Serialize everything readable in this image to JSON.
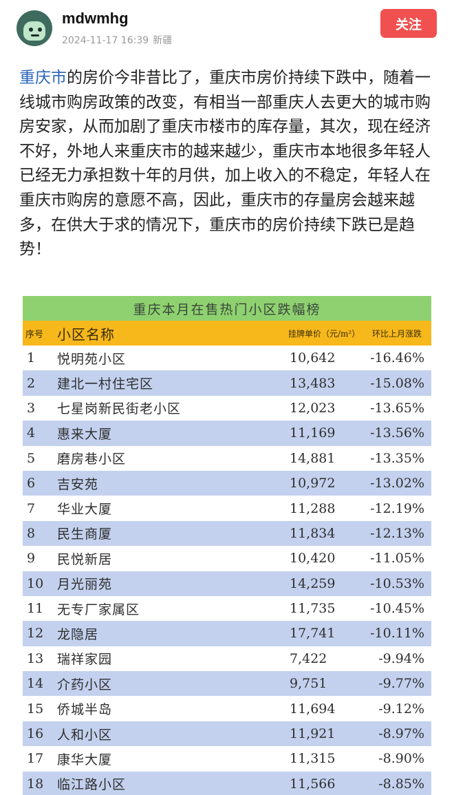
{
  "author": {
    "name": "mdwmhg",
    "timestamp": "2024-11-17 16:39",
    "location": "新疆",
    "follow_label": "关注"
  },
  "post": {
    "link_text": "重庆市",
    "body": "的房价今非昔比了，重庆市房价持续下跌中，随着一线城市购房政策的改变，有相当一部重庆人去更大的城市购房安家，从而加剧了重庆市楼市的库存量，其次，现在经济不好，外地人来重庆市的越来越少，重庆市本地很多年轻人已经无力承担数十年的月供，加上收入的不稳定，年轻人在重庆市购房的意愿不高，因此，重庆市的存量房会越来越多，在供大于求的情况下，重庆市的房价持续下跌已是趋势！"
  },
  "table": {
    "title": "重庆本月在售热门小区跌幅榜",
    "headers": {
      "no": "序号",
      "name": "小区名称",
      "price": "挂牌单价（元/m²）",
      "change": "环比上月涨跌"
    },
    "rows": [
      {
        "no": "1",
        "name": "悦明苑小区",
        "price": "10,642",
        "change": "-16.46%"
      },
      {
        "no": "2",
        "name": "建北一村住宅区",
        "price": "13,483",
        "change": "-15.08%"
      },
      {
        "no": "3",
        "name": "七星岗新民街老小区",
        "price": "12,023",
        "change": "-13.65%"
      },
      {
        "no": "4",
        "name": "惠来大厦",
        "price": "11,169",
        "change": "-13.56%"
      },
      {
        "no": "5",
        "name": "磨房巷小区",
        "price": "14,881",
        "change": "-13.35%"
      },
      {
        "no": "6",
        "name": "吉安苑",
        "price": "10,972",
        "change": "-13.02%"
      },
      {
        "no": "7",
        "name": "华业大厦",
        "price": "11,288",
        "change": "-12.19%"
      },
      {
        "no": "8",
        "name": "民生商厦",
        "price": "11,834",
        "change": "-12.13%"
      },
      {
        "no": "9",
        "name": "民悦新居",
        "price": "10,420",
        "change": "-11.05%"
      },
      {
        "no": "10",
        "name": "月光丽苑",
        "price": "14,259",
        "change": "-10.53%"
      },
      {
        "no": "11",
        "name": "无专厂家属区",
        "price": "11,735",
        "change": "-10.45%"
      },
      {
        "no": "12",
        "name": "龙隐居",
        "price": "17,741",
        "change": "-10.11%"
      },
      {
        "no": "13",
        "name": "瑞祥家园",
        "price": "7,422",
        "change": "-9.94%"
      },
      {
        "no": "14",
        "name": "介药小区",
        "price": "9,751",
        "change": "-9.77%"
      },
      {
        "no": "15",
        "name": "侨城半岛",
        "price": "11,694",
        "change": "-9.12%"
      },
      {
        "no": "16",
        "name": "人和小区",
        "price": "11,921",
        "change": "-8.97%"
      },
      {
        "no": "17",
        "name": "康华大厦",
        "price": "11,315",
        "change": "-8.90%"
      },
      {
        "no": "18",
        "name": "临江路小区",
        "price": "11,566",
        "change": "-8.85%"
      }
    ]
  },
  "colors": {
    "follow_button": "#f05050",
    "link": "#2a64b8",
    "table_title_bg": "#8fd170",
    "table_header_bg": "#f7b81b",
    "row_stripe": "#c3d1ee"
  }
}
